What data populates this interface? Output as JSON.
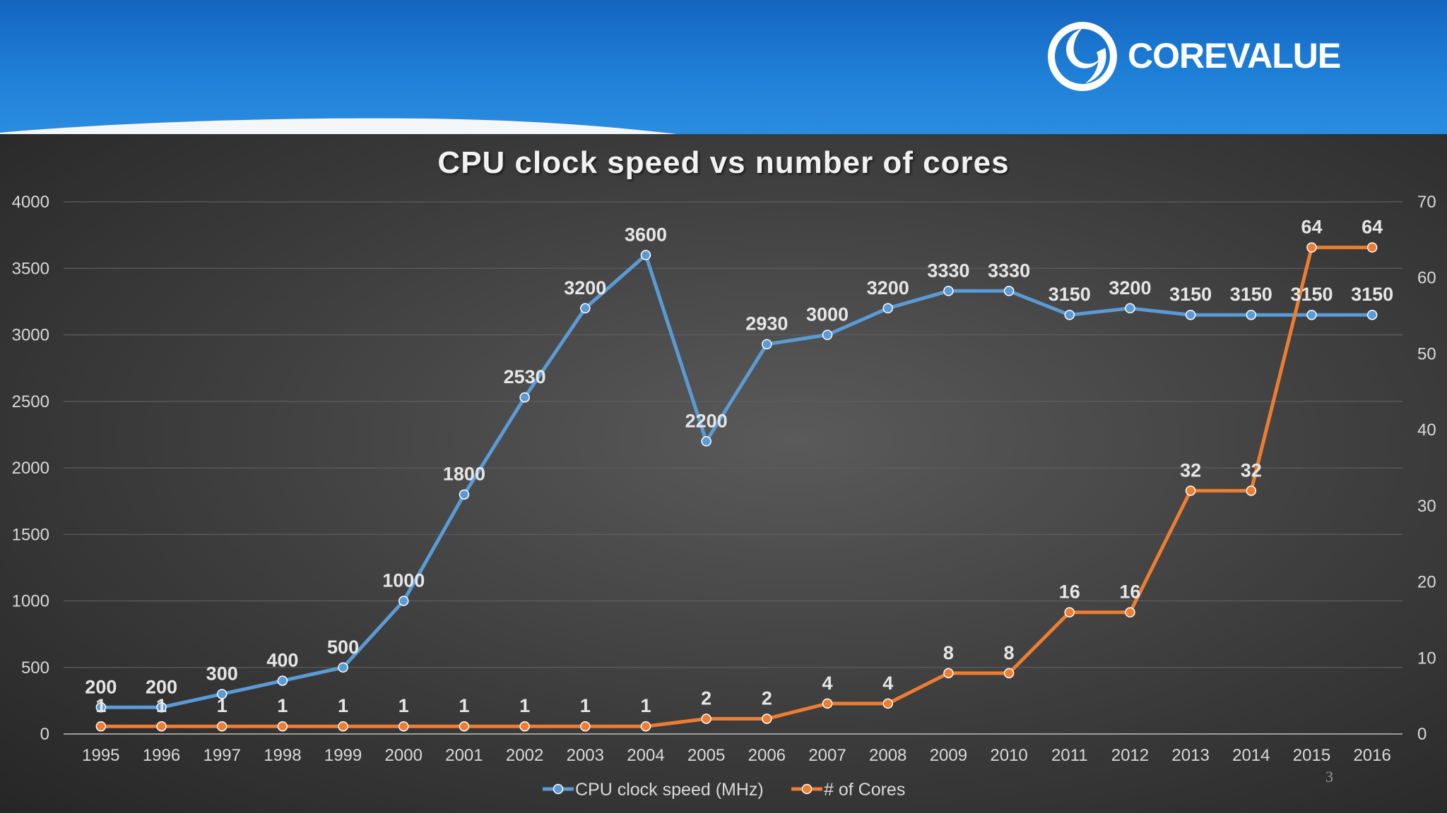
{
  "brand": {
    "name": "COREVALUE",
    "accent": "#1e7fd6"
  },
  "page_number": "3",
  "chart_data": {
    "type": "line",
    "title": "CPU clock speed vs number of cores",
    "categories": [
      "1995",
      "1996",
      "1997",
      "1998",
      "1999",
      "2000",
      "2001",
      "2002",
      "2003",
      "2004",
      "2005",
      "2006",
      "2007",
      "2008",
      "2009",
      "2010",
      "2011",
      "2012",
      "2013",
      "2014",
      "2015",
      "2016"
    ],
    "y_left": {
      "min": 0,
      "max": 4000,
      "step": 500,
      "ticks": [
        "0",
        "500",
        "1000",
        "1500",
        "2000",
        "2500",
        "3000",
        "3500",
        "4000"
      ]
    },
    "y_right": {
      "min": 0,
      "max": 70,
      "step": 10,
      "ticks": [
        "0",
        "10",
        "20",
        "30",
        "40",
        "50",
        "60",
        "70"
      ]
    },
    "series": [
      {
        "name": "CPU clock speed (MHz)",
        "axis": "left",
        "color": "#5b9bd5",
        "values": [
          200,
          200,
          300,
          400,
          500,
          1000,
          1800,
          2530,
          3200,
          3600,
          2200,
          2930,
          3000,
          3200,
          3330,
          3330,
          3150,
          3200,
          3150,
          3150,
          3150,
          3150
        ],
        "labels": [
          "200",
          "200",
          "300",
          "400",
          "500",
          "1000",
          "1800",
          "2530",
          "3200",
          "3600",
          "2200",
          "2930",
          "3000",
          "3200",
          "3330",
          "3330",
          "3150",
          "3200",
          "3150",
          "3150",
          "3150",
          "3150"
        ]
      },
      {
        "name": "# of Cores",
        "axis": "right",
        "color": "#ed7d31",
        "values": [
          1,
          1,
          1,
          1,
          1,
          1,
          1,
          1,
          1,
          1,
          2,
          2,
          4,
          4,
          8,
          8,
          16,
          16,
          32,
          32,
          64,
          64
        ],
        "labels": [
          "1",
          "1",
          "1",
          "1",
          "1",
          "1",
          "1",
          "1",
          "1",
          "1",
          "2",
          "2",
          "4",
          "4",
          "8",
          "8",
          "16",
          "16",
          "32",
          "32",
          "64",
          "64"
        ]
      }
    ],
    "grid": true,
    "legend_position": "bottom"
  }
}
